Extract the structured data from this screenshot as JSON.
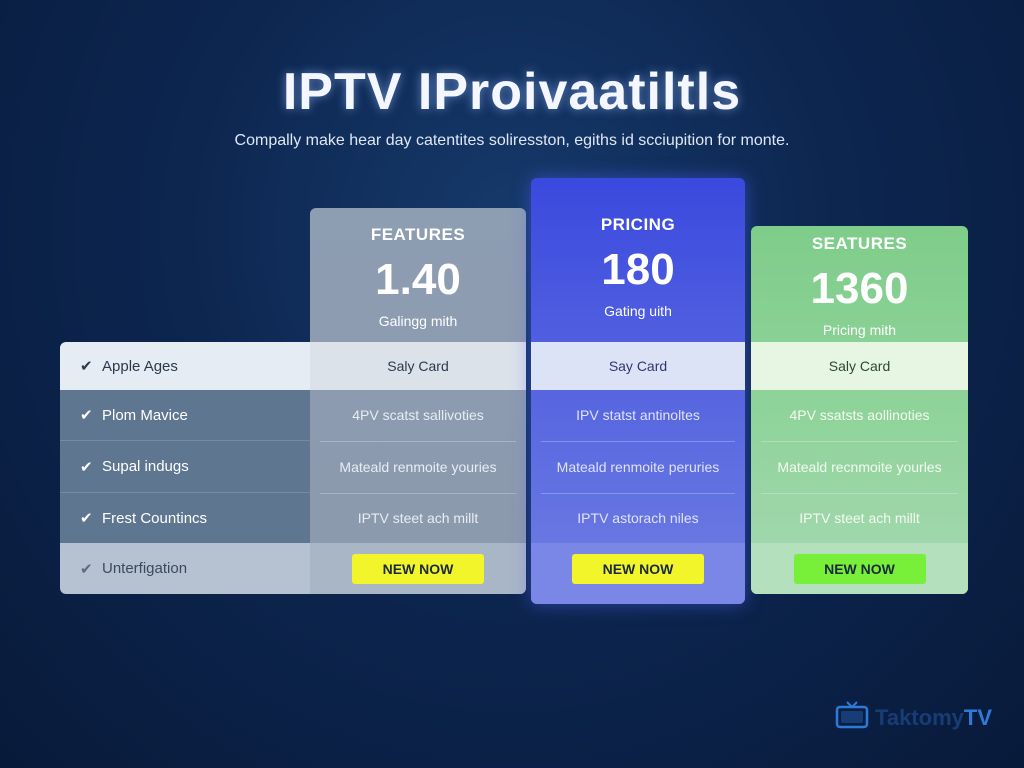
{
  "header": {
    "title": "IPTV IProivaatiltls",
    "subtitle": "Compally make hear day catentites soliresston, egiths id scciupition for monte."
  },
  "features": [
    {
      "label": "Apple Ages"
    },
    {
      "label": "Plom Mavice"
    },
    {
      "label": "Supal indugs"
    },
    {
      "label": "Frest Countincs"
    },
    {
      "label": "Unterfigation"
    }
  ],
  "plans": [
    {
      "label": "FEATURES",
      "price": "1.40",
      "unit": "Galingg mith",
      "card": "Saly Card",
      "row1": "4PV scatst sallivoties",
      "row2": "Mateald renmoite youries",
      "row3": "IPTV steet ach millt",
      "cta": "NEW NOW"
    },
    {
      "label": "PRICING",
      "price": "180",
      "unit": "Gating uith",
      "card": "Say Card",
      "row1": "IPV statst antinoltes",
      "row2": "Mateald renmoite peruries",
      "row3": "IPTV astorach niles",
      "cta": "NEW NOW"
    },
    {
      "label": "SEATURES",
      "price": "1360",
      "unit": "Pricing mith",
      "card": "Saly Card",
      "row1": "4PV ssatsts aollinoties",
      "row2": "Mateald recnmoite yourles",
      "row3": "IPTV steet ach millt",
      "cta": "NEW NOW"
    }
  ],
  "brand": {
    "name_a": "Taktomy",
    "name_b": "TV",
    "icon": "tv-icon"
  },
  "colors": {
    "background": "#0d2650",
    "plan_gray": "#8d9db2",
    "plan_blue": "#3a49de",
    "plan_green": "#7fcd8a",
    "cta_yellow": "#f2f52a",
    "cta_green": "#78f03a"
  }
}
